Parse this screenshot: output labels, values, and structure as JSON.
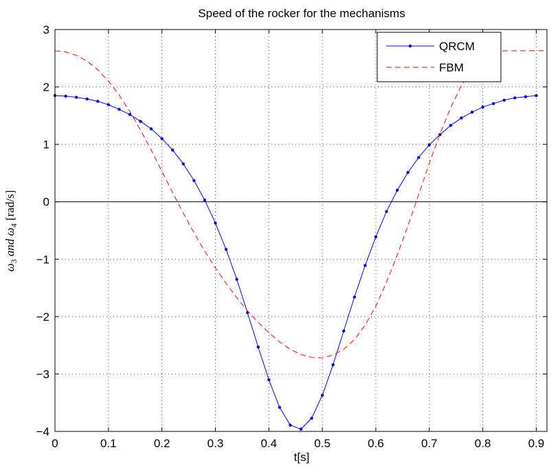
{
  "chart_data": {
    "type": "line",
    "title": "Speed of the rocker for the mechanisms",
    "xlabel": "t[s]",
    "ylabel_parts": {
      "w3": "ω",
      "w3_sub": "3",
      "and": " and ",
      "w4": "ω",
      "w4_sub": "4",
      "unit": " [rad/s]"
    },
    "xlim": [
      0,
      0.92
    ],
    "ylim": [
      -4,
      3
    ],
    "xticks": [
      0,
      0.1,
      0.2,
      0.3,
      0.4,
      0.5,
      0.6,
      0.7,
      0.8,
      0.9
    ],
    "xtick_labels": [
      "0",
      "0.1",
      "0.2",
      "0.3",
      "0.4",
      "0.5",
      "0.6",
      "0.7",
      "0.8",
      "0.9"
    ],
    "yticks": [
      -4,
      -3,
      -2,
      -1,
      0,
      1,
      2,
      3
    ],
    "ytick_labels": [
      "−4",
      "−3",
      "−2",
      "−1",
      "0",
      "1",
      "2",
      "3"
    ],
    "grid": true,
    "zero_line": true,
    "legend_position": "top-right",
    "series": [
      {
        "name": "QRCM",
        "color": "#0000ff",
        "style": "solid-dot",
        "x": [
          0,
          0.02,
          0.04,
          0.06,
          0.08,
          0.1,
          0.12,
          0.14,
          0.16,
          0.18,
          0.2,
          0.22,
          0.24,
          0.26,
          0.28,
          0.3,
          0.32,
          0.34,
          0.36,
          0.38,
          0.4,
          0.42,
          0.44,
          0.46,
          0.48,
          0.5,
          0.52,
          0.54,
          0.56,
          0.58,
          0.6,
          0.62,
          0.64,
          0.66,
          0.68,
          0.7,
          0.72,
          0.74,
          0.76,
          0.78,
          0.8,
          0.82,
          0.84,
          0.86,
          0.88,
          0.9
        ],
        "y": [
          1.85,
          1.84,
          1.82,
          1.79,
          1.75,
          1.69,
          1.61,
          1.52,
          1.4,
          1.27,
          1.1,
          0.9,
          0.66,
          0.37,
          0.03,
          -0.37,
          -0.83,
          -1.35,
          -1.93,
          -2.53,
          -3.1,
          -3.58,
          -3.89,
          -3.96,
          -3.77,
          -3.37,
          -2.84,
          -2.25,
          -1.66,
          -1.11,
          -0.61,
          -0.17,
          0.2,
          0.51,
          0.77,
          0.99,
          1.17,
          1.33,
          1.46,
          1.56,
          1.65,
          1.71,
          1.77,
          1.81,
          1.83,
          1.85
        ]
      },
      {
        "name": "FBM",
        "color": "#ff0000",
        "style": "dashed",
        "x": [
          0,
          0.02,
          0.04,
          0.06,
          0.08,
          0.1,
          0.12,
          0.14,
          0.16,
          0.18,
          0.2,
          0.22,
          0.24,
          0.26,
          0.28,
          0.3,
          0.32,
          0.34,
          0.36,
          0.38,
          0.4,
          0.42,
          0.44,
          0.46,
          0.48,
          0.5,
          0.52,
          0.54,
          0.56,
          0.58,
          0.6,
          0.62,
          0.64,
          0.66,
          0.68,
          0.7,
          0.72,
          0.74,
          0.76,
          0.78,
          0.8,
          0.82,
          0.84,
          0.86,
          0.88,
          0.9,
          0.92
        ],
        "y": [
          2.63,
          2.61,
          2.55,
          2.45,
          2.3,
          2.1,
          1.86,
          1.57,
          1.25,
          0.9,
          0.53,
          0.16,
          -0.2,
          -0.54,
          -0.86,
          -1.15,
          -1.42,
          -1.67,
          -1.9,
          -2.1,
          -2.28,
          -2.44,
          -2.57,
          -2.66,
          -2.71,
          -2.72,
          -2.67,
          -2.57,
          -2.4,
          -2.15,
          -1.82,
          -1.4,
          -0.93,
          -0.42,
          0.12,
          0.67,
          1.18,
          1.64,
          2.02,
          2.32,
          2.52,
          2.61,
          2.63,
          2.63,
          2.63,
          2.63,
          2.63
        ]
      }
    ]
  }
}
